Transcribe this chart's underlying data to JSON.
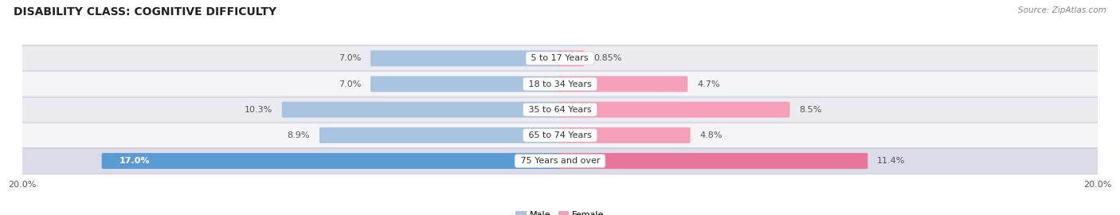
{
  "title": "DISABILITY CLASS: COGNITIVE DIFFICULTY",
  "source": "Source: ZipAtlas.com",
  "categories": [
    "5 to 17 Years",
    "18 to 34 Years",
    "35 to 64 Years",
    "65 to 74 Years",
    "75 Years and over"
  ],
  "male_values": [
    7.0,
    7.0,
    10.3,
    8.9,
    17.0
  ],
  "female_values": [
    0.85,
    4.7,
    8.5,
    4.8,
    11.4
  ],
  "male_color_normal": "#a8c4e0",
  "male_color_last": "#5b9bd5",
  "female_color_normal": "#f4a0b8",
  "female_color_last": "#e8769a",
  "male_label": "Male",
  "female_label": "Female",
  "x_max": 20.0,
  "bar_height": 0.52,
  "row_colors": [
    "#ebebf0",
    "#f5f5f8",
    "#ebebf0",
    "#f5f5f8",
    "#dcdce8"
  ],
  "title_fontsize": 10,
  "source_fontsize": 7.5,
  "label_fontsize": 8,
  "value_fontsize": 8,
  "axis_label_fontsize": 8
}
